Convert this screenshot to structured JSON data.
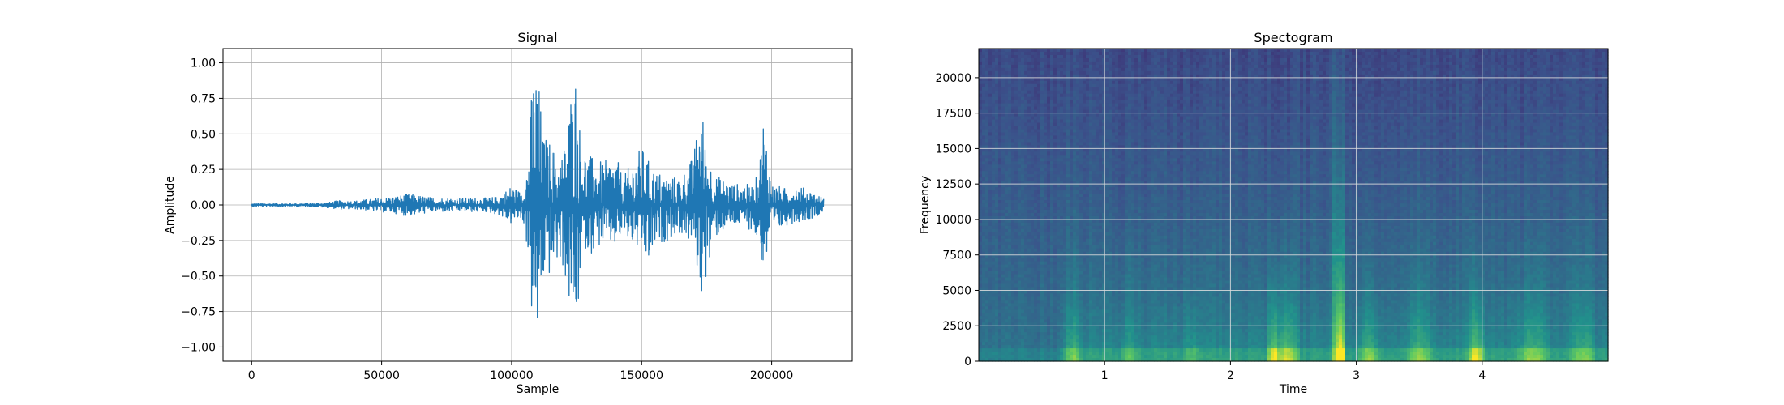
{
  "figure": {
    "background": "#ffffff"
  },
  "chart_data": [
    {
      "type": "line",
      "title": "Signal",
      "xlabel": "Sample",
      "ylabel": "Amplitude",
      "xlim": [
        -11000,
        231000
      ],
      "ylim": [
        -1.1,
        1.1
      ],
      "xticks": [
        0,
        50000,
        100000,
        150000,
        200000
      ],
      "xtick_labels": [
        "0",
        "50000",
        "100000",
        "150000",
        "200000"
      ],
      "yticks": [
        -1.0,
        -0.75,
        -0.5,
        -0.25,
        0.0,
        0.25,
        0.5,
        0.75,
        1.0
      ],
      "ytick_labels": [
        "−1.00",
        "−0.75",
        "−0.50",
        "−0.25",
        "0.00",
        "0.25",
        "0.50",
        "0.75",
        "1.00"
      ],
      "grid": true,
      "color": "#1f77b4",
      "series": [
        {
          "x": [
            0,
            20000,
            30000,
            33000,
            40000,
            55000,
            60000,
            70000,
            90000,
            95000,
            100000,
            103000,
            105000,
            107000,
            108000,
            110000,
            112000,
            115000,
            118000,
            120000,
            123000,
            125000,
            126000,
            128000,
            130000,
            135000,
            140000,
            143000,
            150000,
            153000,
            155000,
            160000,
            165000,
            170000,
            172000,
            173000,
            174000,
            176000,
            178000,
            180000,
            185000,
            190000,
            193000,
            195000,
            197000,
            200000,
            205000,
            210000,
            215000,
            220000
          ],
          "envelope_upper": [
            0.01,
            0.01,
            0.02,
            0.03,
            0.03,
            0.06,
            0.08,
            0.05,
            0.05,
            0.06,
            0.14,
            0.1,
            0.14,
            0.5,
            0.95,
            1.0,
            0.5,
            0.45,
            0.35,
            0.4,
            0.85,
            1.0,
            0.6,
            0.4,
            0.35,
            0.3,
            0.35,
            0.2,
            0.42,
            0.3,
            0.25,
            0.2,
            0.2,
            0.35,
            0.65,
            0.83,
            0.5,
            0.35,
            0.2,
            0.2,
            0.15,
            0.15,
            0.14,
            0.25,
            0.69,
            0.15,
            0.12,
            0.14,
            0.1,
            0.05
          ],
          "envelope_lower": [
            -0.01,
            -0.01,
            -0.02,
            -0.03,
            -0.03,
            -0.06,
            -0.08,
            -0.05,
            -0.05,
            -0.07,
            -0.14,
            -0.1,
            -0.15,
            -0.5,
            -0.9,
            -1.0,
            -0.55,
            -0.5,
            -0.4,
            -0.45,
            -0.85,
            -1.0,
            -0.6,
            -0.3,
            -0.35,
            -0.28,
            -0.3,
            -0.22,
            -0.35,
            -0.45,
            -0.3,
            -0.25,
            -0.2,
            -0.3,
            -0.55,
            -0.68,
            -0.55,
            -0.45,
            -0.25,
            -0.2,
            -0.15,
            -0.15,
            -0.2,
            -0.3,
            -0.5,
            -0.25,
            -0.15,
            -0.12,
            -0.1,
            -0.05
          ]
        }
      ]
    },
    {
      "type": "heatmap",
      "title": "Spectogram",
      "xlabel": "Time",
      "ylabel": "Frequency",
      "xlim": [
        0,
        5
      ],
      "ylim": [
        0,
        22050
      ],
      "xticks": [
        1,
        2,
        3,
        4
      ],
      "xtick_labels": [
        "1",
        "2",
        "3",
        "4"
      ],
      "yticks": [
        0,
        2500,
        5000,
        7500,
        10000,
        12500,
        15000,
        17500,
        20000
      ],
      "ytick_labels": [
        "0",
        "2500",
        "5000",
        "7500",
        "10000",
        "12500",
        "15000",
        "17500",
        "20000"
      ],
      "grid": true,
      "colormap": "viridis",
      "energy_events": [
        {
          "time": 0.75,
          "strength": 0.55,
          "width": 0.08
        },
        {
          "time": 1.2,
          "strength": 0.45,
          "width": 0.1
        },
        {
          "time": 1.7,
          "strength": 0.4,
          "width": 0.1
        },
        {
          "time": 2.35,
          "strength": 0.9,
          "width": 0.06
        },
        {
          "time": 2.45,
          "strength": 0.75,
          "width": 0.1
        },
        {
          "time": 2.87,
          "strength": 1.0,
          "width": 0.04
        },
        {
          "time": 3.1,
          "strength": 0.6,
          "width": 0.1
        },
        {
          "time": 3.5,
          "strength": 0.6,
          "width": 0.12
        },
        {
          "time": 3.95,
          "strength": 0.85,
          "width": 0.07
        },
        {
          "time": 4.4,
          "strength": 0.6,
          "width": 0.15
        },
        {
          "time": 4.8,
          "strength": 0.55,
          "width": 0.12
        }
      ]
    }
  ]
}
